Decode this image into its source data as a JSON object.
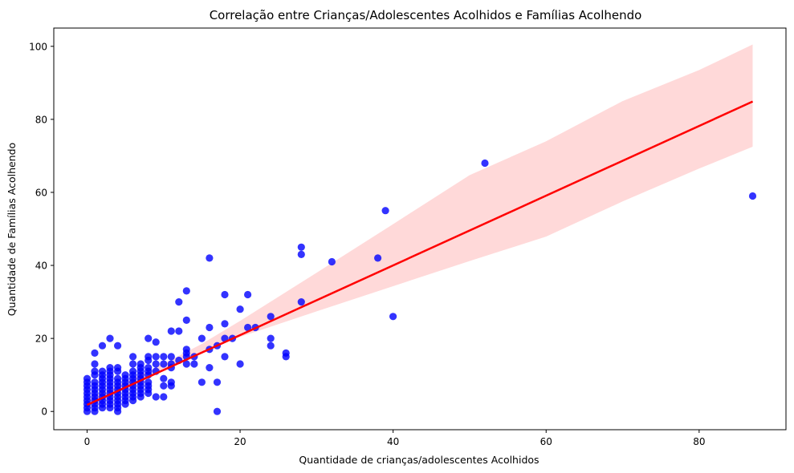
{
  "chart_data": {
    "type": "scatter",
    "title": "Correlação entre Crianças/Adolescentes Acolhidos e Famílias Acolhendo",
    "xlabel": "Quantidade de crianças/adolescentes Acolhidos",
    "ylabel": "Quantidade de Famílias Acolhendo",
    "xlim": [
      -4.35,
      91.35
    ],
    "ylim": [
      -5,
      105
    ],
    "xticks": [
      0,
      20,
      40,
      60,
      80
    ],
    "yticks": [
      0,
      20,
      40,
      60,
      80,
      100
    ],
    "grid": false,
    "legend": "none",
    "colors": {
      "points": "#0000ff",
      "regression_line": "#ff0000",
      "confidence_band": "#ffb3b3"
    },
    "regression": {
      "slope": 0.955,
      "intercept": 1.8,
      "x_range": [
        0,
        87
      ]
    },
    "confidence_band": [
      {
        "x": 0,
        "lower": 0.5,
        "upper": 3.2
      },
      {
        "x": 5,
        "lower": 6.2,
        "upper": 8.1
      },
      {
        "x": 10,
        "lower": 11.6,
        "upper": 13.1
      },
      {
        "x": 15,
        "lower": 16.4,
        "upper": 18.5
      },
      {
        "x": 20,
        "lower": 20.4,
        "upper": 24.8
      },
      {
        "x": 30,
        "lower": 27.4,
        "upper": 38.0
      },
      {
        "x": 40,
        "lower": 34.3,
        "upper": 51.3
      },
      {
        "x": 50,
        "lower": 41.2,
        "upper": 64.7
      },
      {
        "x": 60,
        "lower": 47.9,
        "upper": 74.0
      },
      {
        "x": 70,
        "lower": 57.5,
        "upper": 85.0
      },
      {
        "x": 80,
        "lower": 66.5,
        "upper": 93.5
      },
      {
        "x": 87,
        "lower": 72.5,
        "upper": 100.5
      }
    ],
    "points": [
      [
        0,
        0
      ],
      [
        0,
        1
      ],
      [
        0,
        2
      ],
      [
        0,
        3
      ],
      [
        0,
        4
      ],
      [
        0,
        5
      ],
      [
        0,
        6
      ],
      [
        0,
        7
      ],
      [
        0,
        8
      ],
      [
        0,
        9
      ],
      [
        1,
        0
      ],
      [
        1,
        1
      ],
      [
        1,
        2
      ],
      [
        1,
        3
      ],
      [
        1,
        4
      ],
      [
        1,
        5
      ],
      [
        1,
        6
      ],
      [
        1,
        7
      ],
      [
        1,
        8
      ],
      [
        1,
        10
      ],
      [
        1,
        11
      ],
      [
        1,
        13
      ],
      [
        1,
        16
      ],
      [
        2,
        1
      ],
      [
        2,
        2
      ],
      [
        2,
        3
      ],
      [
        2,
        4
      ],
      [
        2,
        5
      ],
      [
        2,
        6
      ],
      [
        2,
        7
      ],
      [
        2,
        8
      ],
      [
        2,
        9
      ],
      [
        2,
        10
      ],
      [
        2,
        11
      ],
      [
        2,
        18
      ],
      [
        3,
        1
      ],
      [
        3,
        2
      ],
      [
        3,
        3
      ],
      [
        3,
        4
      ],
      [
        3,
        5
      ],
      [
        3,
        6
      ],
      [
        3,
        7
      ],
      [
        3,
        8
      ],
      [
        3,
        9
      ],
      [
        3,
        10
      ],
      [
        3,
        11
      ],
      [
        3,
        12
      ],
      [
        3,
        20
      ],
      [
        4,
        0
      ],
      [
        4,
        1
      ],
      [
        4,
        2
      ],
      [
        4,
        3
      ],
      [
        4,
        4
      ],
      [
        4,
        5
      ],
      [
        4,
        6
      ],
      [
        4,
        7
      ],
      [
        4,
        8
      ],
      [
        4,
        9
      ],
      [
        4,
        11
      ],
      [
        4,
        12
      ],
      [
        4,
        18
      ],
      [
        5,
        2
      ],
      [
        5,
        3
      ],
      [
        5,
        4
      ],
      [
        5,
        5
      ],
      [
        5,
        6
      ],
      [
        5,
        7
      ],
      [
        5,
        8
      ],
      [
        5,
        9
      ],
      [
        5,
        10
      ],
      [
        6,
        3
      ],
      [
        6,
        4
      ],
      [
        6,
        5
      ],
      [
        6,
        6
      ],
      [
        6,
        7
      ],
      [
        6,
        8
      ],
      [
        6,
        9
      ],
      [
        6,
        10
      ],
      [
        6,
        11
      ],
      [
        6,
        13
      ],
      [
        6,
        15
      ],
      [
        7,
        4
      ],
      [
        7,
        5
      ],
      [
        7,
        6
      ],
      [
        7,
        7
      ],
      [
        7,
        8
      ],
      [
        7,
        9
      ],
      [
        7,
        10
      ],
      [
        7,
        11
      ],
      [
        7,
        12
      ],
      [
        7,
        13
      ],
      [
        8,
        5
      ],
      [
        8,
        6
      ],
      [
        8,
        7
      ],
      [
        8,
        8
      ],
      [
        8,
        10
      ],
      [
        8,
        11
      ],
      [
        8,
        12
      ],
      [
        8,
        14
      ],
      [
        8,
        15
      ],
      [
        8,
        20
      ],
      [
        9,
        4
      ],
      [
        9,
        11
      ],
      [
        9,
        13
      ],
      [
        9,
        15
      ],
      [
        9,
        19
      ],
      [
        10,
        4
      ],
      [
        10,
        7
      ],
      [
        10,
        9
      ],
      [
        10,
        13
      ],
      [
        10,
        15
      ],
      [
        11,
        7
      ],
      [
        11,
        8
      ],
      [
        11,
        12
      ],
      [
        11,
        13
      ],
      [
        11,
        15
      ],
      [
        11,
        22
      ],
      [
        12,
        14
      ],
      [
        12,
        22
      ],
      [
        12,
        30
      ],
      [
        13,
        13
      ],
      [
        13,
        15
      ],
      [
        13,
        16
      ],
      [
        13,
        17
      ],
      [
        13,
        25
      ],
      [
        13,
        33
      ],
      [
        14,
        13
      ],
      [
        14,
        15
      ],
      [
        15,
        8
      ],
      [
        15,
        20
      ],
      [
        16,
        12
      ],
      [
        16,
        17
      ],
      [
        16,
        23
      ],
      [
        16,
        42
      ],
      [
        17,
        0
      ],
      [
        17,
        8
      ],
      [
        17,
        18
      ],
      [
        18,
        15
      ],
      [
        18,
        20
      ],
      [
        18,
        24
      ],
      [
        18,
        32
      ],
      [
        19,
        20
      ],
      [
        20,
        13
      ],
      [
        20,
        28
      ],
      [
        21,
        23
      ],
      [
        21,
        32
      ],
      [
        22,
        23
      ],
      [
        24,
        18
      ],
      [
        24,
        20
      ],
      [
        24,
        26
      ],
      [
        26,
        15
      ],
      [
        26,
        16
      ],
      [
        28,
        30
      ],
      [
        28,
        43
      ],
      [
        28,
        45
      ],
      [
        32,
        41
      ],
      [
        38,
        42
      ],
      [
        39,
        55
      ],
      [
        40,
        26
      ],
      [
        52,
        68
      ],
      [
        87,
        59
      ]
    ]
  }
}
